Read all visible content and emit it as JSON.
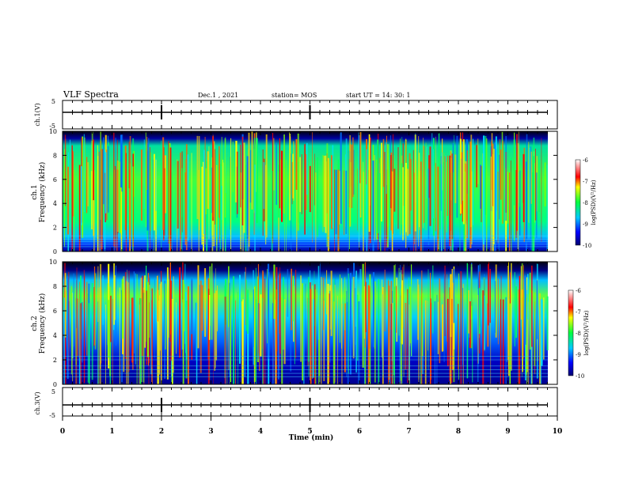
{
  "header": {
    "title": "VLF Spectra",
    "date": "Dec.1 , 2021",
    "station": "station= MOS",
    "start": "start  UT =   14: 30: 1"
  },
  "chart_data": [
    {
      "type": "line",
      "panel": "ch1-waveform",
      "ylabel": "ch.1(V)",
      "ylim": [
        -5,
        5
      ],
      "yticks": [
        "5",
        "-5"
      ],
      "xlim": [
        0,
        10
      ],
      "baseline_value": -0.5
    },
    {
      "type": "heatmap",
      "panel": "ch1-spectrogram",
      "ylabel": "ch.1 Frequency (kHz)",
      "ylim": [
        0,
        10
      ],
      "yticks": [
        "0",
        "2",
        "4",
        "6",
        "8",
        "10"
      ],
      "xlim": [
        0,
        10
      ],
      "colorbar": {
        "label": "log(PSD)(V²/Hz)",
        "range": [
          -10,
          -6
        ],
        "ticks": [
          "-6",
          "-7",
          "-8",
          "-9",
          "-10"
        ]
      },
      "colors": {
        "low": "#000088",
        "mid": "#00ff40",
        "high": "#ff0000"
      }
    },
    {
      "type": "heatmap",
      "panel": "ch2-spectrogram",
      "ylabel": "ch.2 Frequency (kHz)",
      "ylim": [
        0,
        10
      ],
      "yticks": [
        "0",
        "2",
        "4",
        "6",
        "8",
        "10"
      ],
      "xlim": [
        0,
        10
      ],
      "colorbar": {
        "label": "log(PSD)(V²/Hz)",
        "range": [
          -10,
          -6
        ],
        "ticks": [
          "-6",
          "-7",
          "-8",
          "-9",
          "-10"
        ]
      },
      "colors": {
        "low": "#000088",
        "mid": "#00ff40",
        "high": "#ff0000"
      }
    },
    {
      "type": "line",
      "panel": "ch3-waveform",
      "ylabel": "ch.3(V)",
      "ylim": [
        -5,
        5
      ],
      "yticks": [
        "5",
        "-5"
      ],
      "xlim": [
        0,
        10
      ],
      "baseline_value": -0.5
    }
  ],
  "xaxis": {
    "label": "Time (min)",
    "ticks": [
      "0",
      "1",
      "2",
      "3",
      "4",
      "5",
      "6",
      "7",
      "8",
      "9",
      "10"
    ]
  }
}
